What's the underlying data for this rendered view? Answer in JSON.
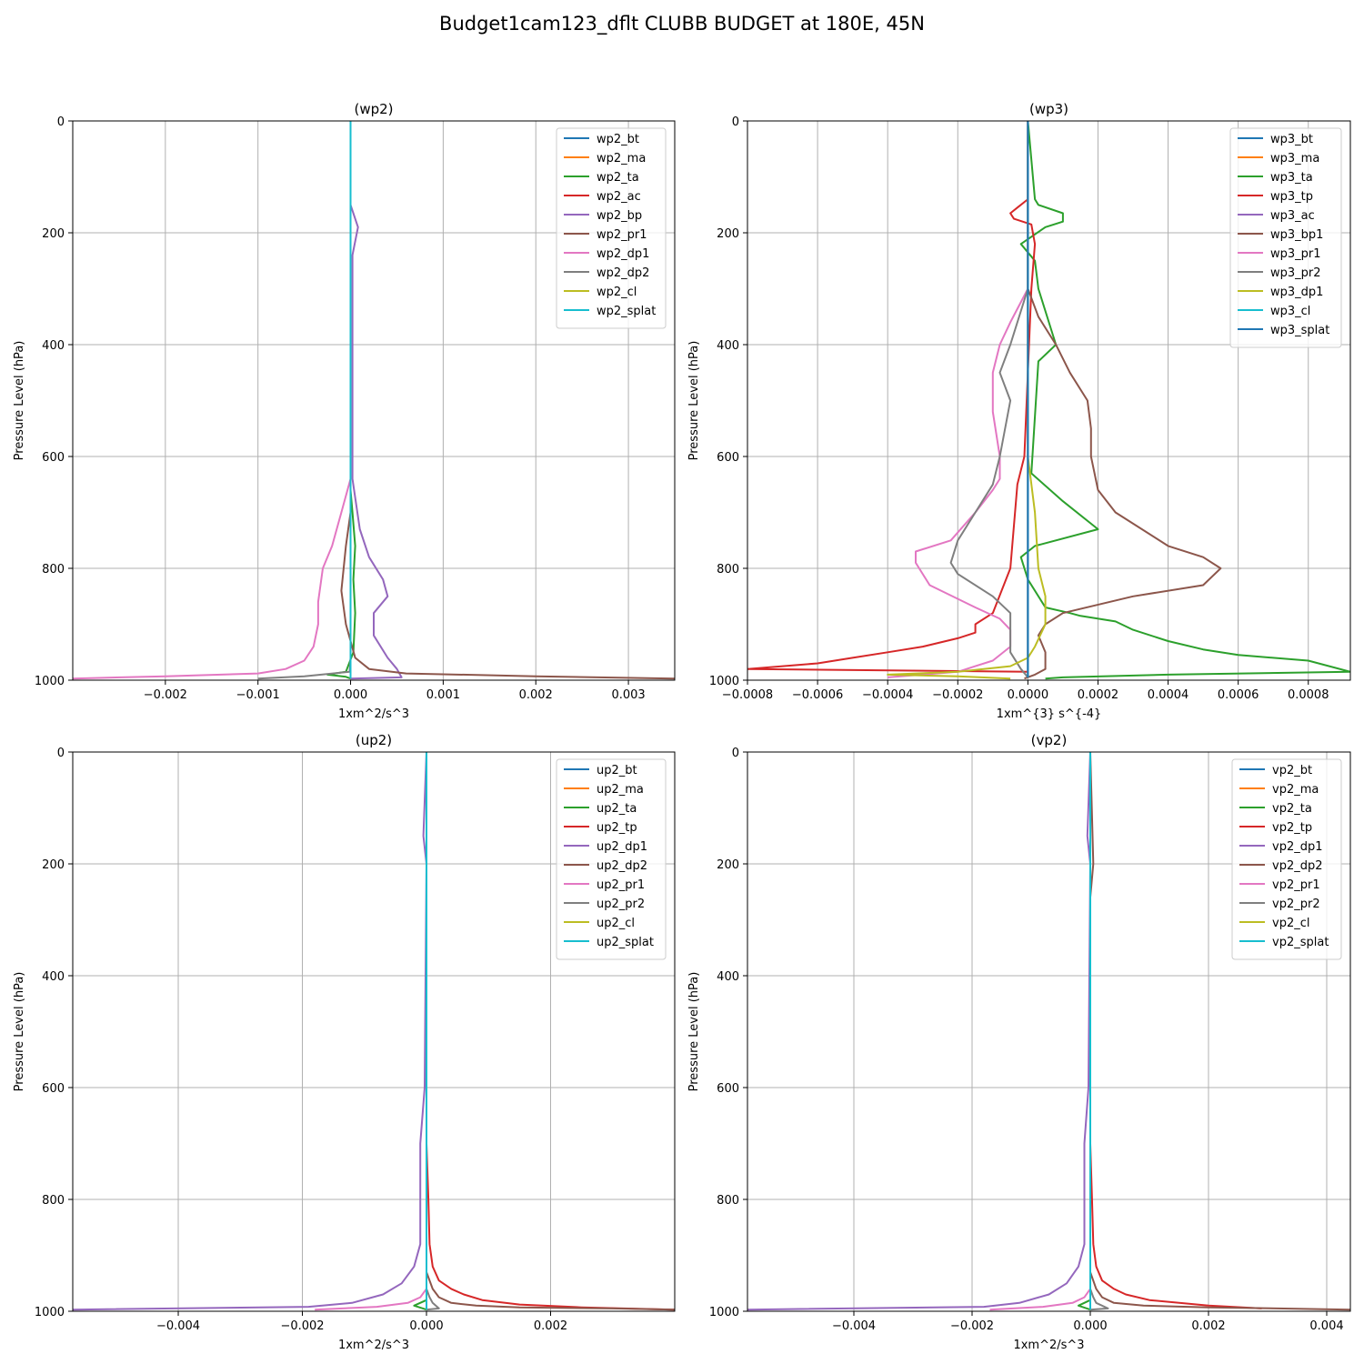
{
  "title": "Budget1cam123_dflt CLUBB BUDGET at 180E, 45N",
  "chart_data": [
    {
      "type": "line",
      "title": "(wp2)",
      "xlabel": "1xm^2/s^3",
      "ylabel": "Pressure Level (hPa)",
      "xlim": [
        -0.003,
        0.0035
      ],
      "ylim": [
        1000,
        0
      ],
      "xticks": [
        -0.002,
        -0.001,
        0.0,
        0.001,
        0.002,
        0.003
      ],
      "xtick_labels": [
        "−0.002",
        "−0.001",
        "0.000",
        "0.001",
        "0.002",
        "0.003"
      ],
      "yticks": [
        0,
        200,
        400,
        600,
        800,
        1000
      ],
      "ytick_labels": [
        "0",
        "200",
        "400",
        "600",
        "800",
        "1000"
      ],
      "grid": true,
      "legend": "upper right",
      "series": [
        {
          "name": "wp2_bt",
          "color": "#1f77b4",
          "x": [
            0,
            0
          ],
          "y": [
            0,
            997
          ]
        },
        {
          "name": "wp2_ma",
          "color": "#ff7f0e",
          "x": [
            0,
            0
          ],
          "y": [
            0,
            997
          ]
        },
        {
          "name": "wp2_ta",
          "color": "#2ca02c",
          "x": [
            0,
            0,
            2e-05,
            5e-05,
            3e-05,
            5e-05,
            3e-05,
            -5e-05,
            -0.00025,
            -5e-05,
            0
          ],
          "y": [
            0,
            660,
            700,
            760,
            820,
            880,
            950,
            985,
            990,
            994,
            997
          ]
        },
        {
          "name": "wp2_ac",
          "color": "#d62728",
          "x": [
            0,
            0
          ],
          "y": [
            0,
            997
          ]
        },
        {
          "name": "wp2_bp",
          "color": "#9467bd",
          "x": [
            0,
            0,
            8e-05,
            2e-05,
            2e-05,
            0.0001,
            0.0002,
            0.00035,
            0.0004,
            0.00025,
            0.00025,
            0.0004,
            0.0005,
            0.00055,
            0
          ],
          "y": [
            0,
            150,
            190,
            240,
            640,
            730,
            780,
            820,
            850,
            880,
            920,
            960,
            980,
            995,
            997
          ]
        },
        {
          "name": "wp2_pr1",
          "color": "#8c564b",
          "x": [
            0,
            0,
            -5e-05,
            -0.0001,
            -5e-05,
            5e-05,
            0.0002,
            0.0006,
            0.002,
            0.0035
          ],
          "y": [
            0,
            700,
            760,
            840,
            900,
            960,
            980,
            988,
            993,
            997
          ]
        },
        {
          "name": "wp2_dp1",
          "color": "#e377c2",
          "x": [
            0,
            0,
            -0.0001,
            -0.0002,
            -0.0003,
            -0.00035,
            -0.00035,
            -0.0004,
            -0.0005,
            -0.0007,
            -0.001,
            -0.002,
            -0.003
          ],
          "y": [
            0,
            640,
            700,
            760,
            800,
            860,
            900,
            940,
            965,
            980,
            988,
            993,
            997
          ]
        },
        {
          "name": "wp2_dp2",
          "color": "#7f7f7f",
          "x": [
            0,
            0,
            -1e-05,
            -0.0005,
            -0.001
          ],
          "y": [
            0,
            960,
            985,
            993,
            997
          ]
        },
        {
          "name": "wp2_cl",
          "color": "#bcbd22",
          "x": [
            0,
            0
          ],
          "y": [
            0,
            997
          ]
        },
        {
          "name": "wp2_splat",
          "color": "#17becf",
          "x": [
            0,
            0
          ],
          "y": [
            0,
            997
          ]
        }
      ]
    },
    {
      "type": "line",
      "title": "(wp3)",
      "xlabel": "1xm^{3} s^{-4}",
      "ylabel": "Pressure Level (hPa)",
      "xlim": [
        -0.0008,
        0.00092
      ],
      "ylim": [
        1000,
        0
      ],
      "xticks": [
        -0.0008,
        -0.0006,
        -0.0004,
        -0.0002,
        0.0,
        0.0002,
        0.0004,
        0.0006,
        0.0008
      ],
      "xtick_labels": [
        "−0.0008",
        "−0.0006",
        "−0.0004",
        "−0.0002",
        "0.0000",
        "0.0002",
        "0.0004",
        "0.0006",
        "0.0008"
      ],
      "yticks": [
        0,
        200,
        400,
        600,
        800,
        1000
      ],
      "ytick_labels": [
        "0",
        "200",
        "400",
        "600",
        "800",
        "1000"
      ],
      "grid": true,
      "legend": "upper right",
      "series": [
        {
          "name": "wp3_bt",
          "color": "#1f77b4",
          "x": [
            0,
            0
          ],
          "y": [
            0,
            995
          ]
        },
        {
          "name": "wp3_ma",
          "color": "#ff7f0e",
          "x": [
            0,
            0
          ],
          "y": [
            0,
            995
          ]
        },
        {
          "name": "wp3_ta",
          "color": "#2ca02c",
          "x": [
            0,
            2e-05,
            3e-05,
            0.0001,
            0.0001,
            5e-05,
            -2e-05,
            2e-05,
            3e-05,
            8e-05,
            3e-05,
            1e-05,
            0.0001,
            0.0002,
            2e-05,
            -2e-05,
            0,
            5e-05,
            0.00012,
            0.00015,
            0.00025,
            0.0003,
            0.0004,
            0.0005,
            0.0006,
            0.0008,
            0.00092,
            0.0004,
            0.0001,
            5e-05
          ],
          "y": [
            0,
            140,
            150,
            165,
            180,
            190,
            220,
            250,
            300,
            400,
            430,
            630,
            680,
            730,
            760,
            780,
            820,
            870,
            880,
            885,
            895,
            910,
            930,
            945,
            955,
            965,
            985,
            990,
            995,
            997
          ]
        },
        {
          "name": "wp3_tp",
          "color": "#d62728",
          "x": [
            0,
            0,
            -3e-05,
            -5e-05,
            -4e-05,
            1e-05,
            2e-05,
            1e-05,
            -1e-05,
            -3e-05,
            -5e-05,
            -0.0001,
            -0.00015,
            -0.00015,
            -0.0002,
            -0.0003,
            -0.0004,
            -0.0005,
            -0.0006,
            -0.0008,
            0
          ],
          "y": [
            0,
            140,
            155,
            165,
            175,
            185,
            220,
            300,
            600,
            650,
            800,
            880,
            900,
            915,
            925,
            940,
            950,
            960,
            970,
            980,
            985
          ]
        },
        {
          "name": "wp3_ac",
          "color": "#9467bd",
          "x": [
            0,
            0
          ],
          "y": [
            0,
            995
          ]
        },
        {
          "name": "wp3_bp1",
          "color": "#8c564b",
          "x": [
            0,
            0,
            3e-05,
            8e-05,
            0.00012,
            0.00017,
            0.00018,
            0.00018,
            0.0002,
            0.00025,
            0.0004,
            0.0005,
            0.00055,
            0.0005,
            0.0003,
            0.0001,
            5e-05,
            3e-05,
            5e-05,
            5e-05,
            2e-05,
            -1e-05
          ],
          "y": [
            0,
            300,
            350,
            400,
            450,
            500,
            550,
            600,
            660,
            700,
            760,
            780,
            800,
            830,
            850,
            880,
            900,
            920,
            950,
            980,
            990,
            997
          ]
        },
        {
          "name": "wp3_pr1",
          "color": "#e377c2",
          "x": [
            0,
            0,
            -5e-05,
            -8e-05,
            -0.0001,
            -0.0001,
            -8e-05,
            -8e-05,
            -0.0001,
            -0.00015,
            -0.00022,
            -0.00032,
            -0.00032,
            -0.00028,
            -0.00015,
            -8e-05,
            -5e-05,
            -5e-05,
            -0.0001,
            -0.00015,
            -0.0002,
            -0.0004
          ],
          "y": [
            0,
            300,
            360,
            400,
            450,
            520,
            600,
            640,
            660,
            700,
            750,
            770,
            790,
            830,
            870,
            890,
            910,
            940,
            965,
            975,
            985,
            995
          ]
        },
        {
          "name": "wp3_pr2",
          "color": "#7f7f7f",
          "x": [
            0,
            0,
            -5e-05,
            -8e-05,
            -5e-05,
            -8e-05,
            -0.0001,
            -0.00015,
            -0.0002,
            -0.00022,
            -0.0002,
            -0.0001,
            -5e-05,
            -5e-05,
            -2e-05,
            0
          ],
          "y": [
            0,
            300,
            400,
            450,
            500,
            600,
            650,
            700,
            750,
            790,
            810,
            850,
            880,
            950,
            980,
            995
          ]
        },
        {
          "name": "wp3_dp1",
          "color": "#bcbd22",
          "x": [
            0,
            0,
            2e-05,
            3e-05,
            5e-05,
            5e-05,
            2e-05,
            0,
            -5e-05,
            -0.0002,
            -0.0004,
            -0.0002,
            -5e-05
          ],
          "y": [
            0,
            600,
            700,
            800,
            850,
            900,
            940,
            960,
            975,
            985,
            990,
            993,
            997
          ]
        },
        {
          "name": "wp3_cl",
          "color": "#17becf",
          "x": [
            0,
            0
          ],
          "y": [
            0,
            995
          ]
        },
        {
          "name": "wp3_splat",
          "color": "#1f77b4",
          "x": [
            0,
            0
          ],
          "y": [
            0,
            995
          ]
        }
      ]
    },
    {
      "type": "line",
      "title": "(up2)",
      "xlabel": "1xm^2/s^3",
      "ylabel": "Pressure Level (hPa)",
      "xlim": [
        -0.0057,
        0.004
      ],
      "ylim": [
        1000,
        0
      ],
      "xticks": [
        -0.004,
        -0.002,
        0.0,
        0.002
      ],
      "xtick_labels": [
        "−0.004",
        "−0.002",
        "0.000",
        "0.002"
      ],
      "yticks": [
        0,
        200,
        400,
        600,
        800,
        1000
      ],
      "ytick_labels": [
        "0",
        "200",
        "400",
        "600",
        "800",
        "1000"
      ],
      "grid": true,
      "legend": "upper right",
      "series": [
        {
          "name": "up2_bt",
          "color": "#1f77b4",
          "x": [
            0,
            0
          ],
          "y": [
            0,
            997
          ]
        },
        {
          "name": "up2_ma",
          "color": "#ff7f0e",
          "x": [
            0,
            0
          ],
          "y": [
            0,
            997
          ]
        },
        {
          "name": "up2_ta",
          "color": "#2ca02c",
          "x": [
            0,
            0,
            -0.0002,
            0
          ],
          "y": [
            0,
            980,
            990,
            997
          ]
        },
        {
          "name": "up2_tp",
          "color": "#d62728",
          "x": [
            0,
            0,
            3e-05,
            5e-05,
            0.0001,
            0.0002,
            0.0004,
            0.0006,
            0.0009,
            0.0015,
            0.0025,
            0.004
          ],
          "y": [
            0,
            700,
            800,
            880,
            920,
            945,
            960,
            970,
            980,
            988,
            993,
            997
          ]
        },
        {
          "name": "up2_dp1",
          "color": "#9467bd",
          "x": [
            0,
            -5e-05,
            0,
            -3e-05,
            -0.0001,
            -0.0001,
            -0.0002,
            -0.0004,
            -0.0007,
            -0.0012,
            -0.0019,
            -0.0057
          ],
          "y": [
            0,
            150,
            200,
            600,
            700,
            880,
            920,
            950,
            970,
            985,
            992,
            997
          ]
        },
        {
          "name": "up2_dp2",
          "color": "#8c564b",
          "x": [
            0,
            0,
            0.0001,
            0.0002,
            0.0004,
            0.0008,
            0.0015,
            0.003,
            0.004
          ],
          "y": [
            0,
            930,
            960,
            975,
            985,
            990,
            993,
            995,
            997
          ]
        },
        {
          "name": "up2_pr1",
          "color": "#e377c2",
          "x": [
            0,
            0,
            -0.0001,
            -0.0003,
            -0.0008,
            -0.0018
          ],
          "y": [
            0,
            960,
            975,
            985,
            992,
            997
          ]
        },
        {
          "name": "up2_pr2",
          "color": "#7f7f7f",
          "x": [
            0,
            0,
            5e-05,
            0.0001,
            0.0002,
            0
          ],
          "y": [
            0,
            960,
            975,
            985,
            995,
            997
          ]
        },
        {
          "name": "up2_cl",
          "color": "#bcbd22",
          "x": [
            0,
            0
          ],
          "y": [
            0,
            997
          ]
        },
        {
          "name": "up2_splat",
          "color": "#17becf",
          "x": [
            0,
            0
          ],
          "y": [
            0,
            997
          ]
        }
      ]
    },
    {
      "type": "line",
      "title": "(vp2)",
      "xlabel": "1xm^2/s^3",
      "ylabel": "Pressure Level (hPa)",
      "xlim": [
        -0.0058,
        0.0044
      ],
      "ylim": [
        1000,
        0
      ],
      "xticks": [
        -0.004,
        -0.002,
        0.0,
        0.002,
        0.004
      ],
      "xtick_labels": [
        "−0.004",
        "−0.002",
        "0.000",
        "0.002",
        "0.004"
      ],
      "yticks": [
        0,
        200,
        400,
        600,
        800,
        1000
      ],
      "ytick_labels": [
        "0",
        "200",
        "400",
        "600",
        "800",
        "1000"
      ],
      "grid": true,
      "legend": "upper right",
      "series": [
        {
          "name": "vp2_bt",
          "color": "#1f77b4",
          "x": [
            0,
            0
          ],
          "y": [
            0,
            997
          ]
        },
        {
          "name": "vp2_ma",
          "color": "#ff7f0e",
          "x": [
            0,
            0
          ],
          "y": [
            0,
            997
          ]
        },
        {
          "name": "vp2_ta",
          "color": "#2ca02c",
          "x": [
            0,
            0,
            -0.0002,
            0
          ],
          "y": [
            0,
            980,
            990,
            997
          ]
        },
        {
          "name": "vp2_tp",
          "color": "#d62728",
          "x": [
            0,
            0,
            3e-05,
            5e-05,
            0.0001,
            0.0002,
            0.0004,
            0.0006,
            0.001,
            0.002,
            0.0029
          ],
          "y": [
            0,
            700,
            800,
            880,
            920,
            945,
            960,
            970,
            980,
            990,
            995
          ]
        },
        {
          "name": "vp2_dp1",
          "color": "#9467bd",
          "x": [
            0,
            -5e-05,
            0,
            -3e-05,
            -0.0001,
            -0.0001,
            -0.0002,
            -0.0004,
            -0.0007,
            -0.0012,
            -0.0018,
            -0.0058
          ],
          "y": [
            0,
            150,
            200,
            600,
            700,
            880,
            920,
            950,
            970,
            985,
            992,
            997
          ]
        },
        {
          "name": "vp2_dp2",
          "color": "#8c564b",
          "x": [
            0,
            5e-05,
            0,
            0,
            0.0001,
            0.0002,
            0.0004,
            0.0009,
            0.002,
            0.0044
          ],
          "y": [
            0,
            200,
            260,
            930,
            960,
            975,
            985,
            990,
            993,
            997
          ]
        },
        {
          "name": "vp2_pr1",
          "color": "#e377c2",
          "x": [
            0,
            0,
            -0.0001,
            -0.0003,
            -0.0008,
            -0.0017
          ],
          "y": [
            0,
            960,
            975,
            985,
            992,
            997
          ]
        },
        {
          "name": "vp2_pr2",
          "color": "#7f7f7f",
          "x": [
            0,
            0,
            5e-05,
            0.0001,
            0.0003,
            0
          ],
          "y": [
            0,
            960,
            975,
            985,
            995,
            997
          ]
        },
        {
          "name": "vp2_cl",
          "color": "#bcbd22",
          "x": [
            0,
            0
          ],
          "y": [
            0,
            997
          ]
        },
        {
          "name": "vp2_splat",
          "color": "#17becf",
          "x": [
            0,
            0
          ],
          "y": [
            0,
            997
          ]
        }
      ]
    }
  ]
}
